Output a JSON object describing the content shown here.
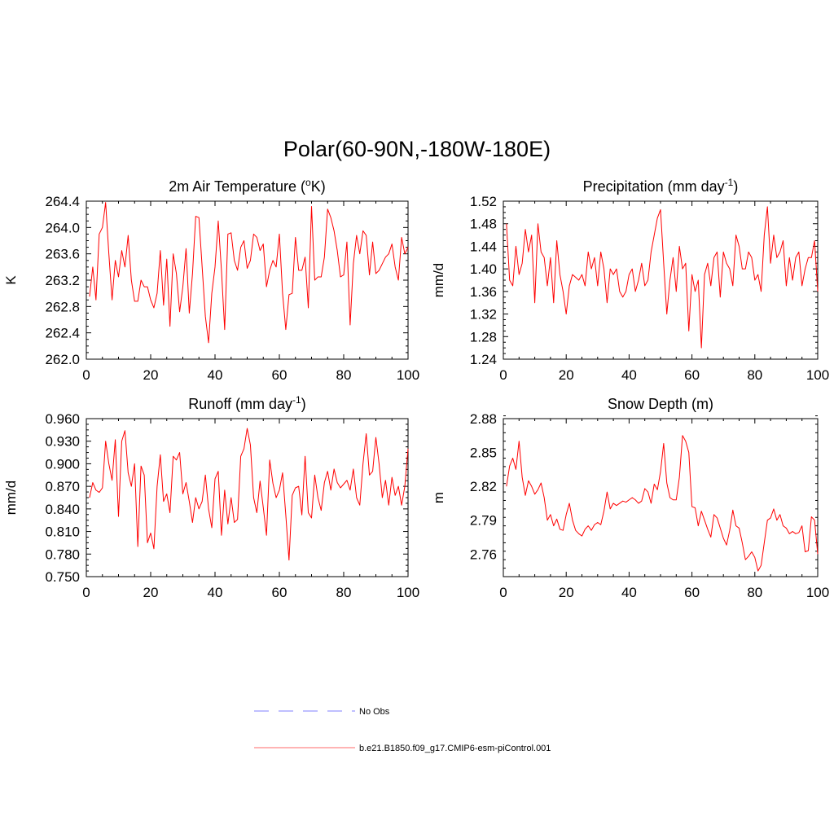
{
  "figure": {
    "title": "Polar(60-90N,-180W-180E)",
    "line_color": "#ff0000",
    "obs_color": "#9999ff"
  },
  "legend": {
    "entries": [
      {
        "label": "No Obs",
        "style": "dashed",
        "color": "#9999ff"
      },
      {
        "label": "b.e21.B1850.f09_g17.CMIP6-esm-piControl.001",
        "style": "solid",
        "color": "#ff0000"
      }
    ]
  },
  "chart_data": [
    {
      "type": "line",
      "title": "2m Air Temperature (",
      "title_sup": "o",
      "title_tail": "K)",
      "xlabel": "",
      "ylabel": "K",
      "xlim": [
        0,
        100
      ],
      "ylim": [
        262.0,
        264.4
      ],
      "xticks": [
        0,
        20,
        40,
        60,
        80,
        100
      ],
      "xtick_labels": [
        "0",
        "20",
        "40",
        "60",
        "80",
        "100"
      ],
      "yticks": [
        262.0,
        262.4,
        262.8,
        263.2,
        263.6,
        264.0,
        264.4
      ],
      "ytick_labels": [
        "262.0",
        "262.4",
        "262.8",
        "263.2",
        "263.6",
        "264.0",
        "264.4"
      ],
      "x_start": 1,
      "series": [
        {
          "name": "b.e21.B1850.f09_g17.CMIP6-esm-piControl.001",
          "values": [
            262.95,
            263.4,
            262.9,
            263.9,
            264.0,
            264.38,
            263.6,
            262.9,
            263.5,
            263.25,
            263.65,
            263.4,
            263.88,
            263.2,
            262.88,
            262.88,
            263.2,
            263.1,
            263.1,
            262.9,
            262.78,
            263.0,
            263.65,
            262.82,
            263.52,
            262.5,
            263.6,
            263.3,
            262.72,
            263.1,
            263.68,
            262.7,
            263.3,
            264.17,
            264.15,
            263.4,
            262.65,
            262.25,
            263.0,
            263.4,
            264.1,
            263.35,
            262.45,
            263.9,
            263.92,
            263.5,
            263.35,
            263.7,
            263.8,
            263.38,
            263.5,
            263.9,
            263.85,
            263.65,
            263.75,
            263.1,
            263.35,
            263.5,
            263.4,
            263.9,
            263.0,
            262.45,
            262.98,
            263.0,
            263.85,
            263.35,
            263.35,
            263.55,
            262.78,
            264.32,
            263.2,
            263.25,
            263.25,
            263.55,
            264.28,
            264.15,
            263.95,
            263.65,
            263.25,
            263.28,
            263.78,
            262.52,
            263.45,
            263.88,
            263.6,
            263.95,
            263.88,
            263.28,
            263.78,
            263.3,
            263.35,
            263.45,
            263.55,
            263.6,
            263.75,
            263.4,
            263.2,
            263.85,
            263.6,
            263.7
          ]
        }
      ]
    },
    {
      "type": "line",
      "title": "Precipitation (mm day",
      "title_sup": "-1",
      "title_tail": ")",
      "xlabel": "",
      "ylabel": "mm/d",
      "xlim": [
        0,
        100
      ],
      "ylim": [
        1.24,
        1.52
      ],
      "xticks": [
        0,
        20,
        40,
        60,
        80,
        100
      ],
      "xtick_labels": [
        "0",
        "20",
        "40",
        "60",
        "80",
        "100"
      ],
      "yticks": [
        1.24,
        1.28,
        1.32,
        1.36,
        1.4,
        1.44,
        1.48,
        1.52
      ],
      "ytick_labels": [
        "1.24",
        "1.28",
        "1.32",
        "1.36",
        "1.40",
        "1.44",
        "1.48",
        "1.52"
      ],
      "x_start": 1,
      "series": [
        {
          "name": "b.e21.B1850.f09_g17.CMIP6-esm-piControl.001",
          "values": [
            1.48,
            1.38,
            1.37,
            1.44,
            1.39,
            1.41,
            1.47,
            1.43,
            1.46,
            1.34,
            1.48,
            1.43,
            1.42,
            1.37,
            1.42,
            1.34,
            1.45,
            1.39,
            1.36,
            1.32,
            1.37,
            1.39,
            1.385,
            1.38,
            1.39,
            1.37,
            1.43,
            1.4,
            1.42,
            1.37,
            1.43,
            1.4,
            1.34,
            1.4,
            1.39,
            1.4,
            1.36,
            1.35,
            1.36,
            1.39,
            1.4,
            1.36,
            1.38,
            1.41,
            1.37,
            1.38,
            1.43,
            1.46,
            1.49,
            1.505,
            1.41,
            1.32,
            1.38,
            1.42,
            1.36,
            1.44,
            1.4,
            1.41,
            1.29,
            1.39,
            1.36,
            1.38,
            1.26,
            1.39,
            1.41,
            1.37,
            1.42,
            1.43,
            1.35,
            1.43,
            1.41,
            1.4,
            1.37,
            1.46,
            1.44,
            1.4,
            1.4,
            1.43,
            1.42,
            1.38,
            1.39,
            1.36,
            1.46,
            1.51,
            1.41,
            1.46,
            1.42,
            1.43,
            1.45,
            1.37,
            1.42,
            1.38,
            1.42,
            1.43,
            1.37,
            1.4,
            1.42,
            1.42,
            1.45,
            1.36
          ]
        }
      ]
    },
    {
      "type": "line",
      "title": "Runoff (mm day",
      "title_sup": "-1",
      "title_tail": ")",
      "xlabel": "",
      "ylabel": "mm/d",
      "xlim": [
        0,
        100
      ],
      "ylim": [
        0.75,
        0.96
      ],
      "xticks": [
        0,
        20,
        40,
        60,
        80,
        100
      ],
      "xtick_labels": [
        "0",
        "20",
        "40",
        "60",
        "80",
        "100"
      ],
      "yticks": [
        0.75,
        0.78,
        0.81,
        0.84,
        0.87,
        0.9,
        0.93,
        0.96
      ],
      "ytick_labels": [
        "0.750",
        "0.780",
        "0.810",
        "0.840",
        "0.870",
        "0.900",
        "0.930",
        "0.960"
      ],
      "x_start": 1,
      "series": [
        {
          "name": "b.e21.B1850.f09_g17.CMIP6-esm-piControl.001",
          "values": [
            0.855,
            0.875,
            0.865,
            0.862,
            0.868,
            0.93,
            0.9,
            0.878,
            0.932,
            0.83,
            0.93,
            0.944,
            0.888,
            0.87,
            0.9,
            0.79,
            0.897,
            0.885,
            0.795,
            0.808,
            0.787,
            0.87,
            0.912,
            0.85,
            0.86,
            0.835,
            0.91,
            0.905,
            0.915,
            0.86,
            0.875,
            0.85,
            0.822,
            0.855,
            0.84,
            0.85,
            0.885,
            0.84,
            0.815,
            0.88,
            0.89,
            0.805,
            0.865,
            0.82,
            0.855,
            0.822,
            0.826,
            0.91,
            0.92,
            0.947,
            0.925,
            0.855,
            0.835,
            0.877,
            0.842,
            0.805,
            0.905,
            0.874,
            0.855,
            0.865,
            0.888,
            0.832,
            0.772,
            0.858,
            0.868,
            0.87,
            0.832,
            0.91,
            0.835,
            0.828,
            0.885,
            0.855,
            0.838,
            0.875,
            0.89,
            0.865,
            0.893,
            0.875,
            0.868,
            0.873,
            0.878,
            0.865,
            0.893,
            0.855,
            0.845,
            0.9,
            0.94,
            0.885,
            0.89,
            0.935,
            0.9,
            0.855,
            0.878,
            0.845,
            0.882,
            0.858,
            0.87,
            0.845,
            0.87,
            0.92
          ]
        }
      ]
    },
    {
      "type": "line",
      "title": "Snow Depth (m)",
      "title_sup": "",
      "title_tail": "",
      "xlabel": "",
      "ylabel": "m",
      "xlim": [
        0,
        100
      ],
      "ylim": [
        2.74,
        2.88
      ],
      "xticks": [
        0,
        20,
        40,
        60,
        80,
        100
      ],
      "xtick_labels": [
        "0",
        "20",
        "40",
        "60",
        "80",
        "100"
      ],
      "yticks": [
        2.76,
        2.79,
        2.82,
        2.85,
        2.88
      ],
      "ytick_labels": [
        "2.76",
        "2.79",
        "2.82",
        "2.85",
        "2.88"
      ],
      "x_start": 1,
      "series": [
        {
          "name": "b.e21.B1850.f09_g17.CMIP6-esm-piControl.001",
          "values": [
            2.82,
            2.838,
            2.845,
            2.835,
            2.86,
            2.828,
            2.812,
            2.825,
            2.82,
            2.813,
            2.817,
            2.823,
            2.81,
            2.79,
            2.795,
            2.785,
            2.791,
            2.782,
            2.781,
            2.795,
            2.805,
            2.79,
            2.781,
            2.778,
            2.776,
            2.782,
            2.785,
            2.781,
            2.786,
            2.788,
            2.786,
            2.798,
            2.815,
            2.8,
            2.805,
            2.803,
            2.805,
            2.807,
            2.806,
            2.808,
            2.81,
            2.808,
            2.805,
            2.807,
            2.818,
            2.815,
            2.805,
            2.822,
            2.817,
            2.833,
            2.858,
            2.823,
            2.81,
            2.808,
            2.808,
            2.828,
            2.865,
            2.86,
            2.85,
            2.802,
            2.801,
            2.785,
            2.798,
            2.79,
            2.782,
            2.775,
            2.795,
            2.792,
            2.783,
            2.774,
            2.768,
            2.781,
            2.799,
            2.785,
            2.783,
            2.77,
            2.755,
            2.758,
            2.762,
            2.757,
            2.745,
            2.75,
            2.77,
            2.79,
            2.792,
            2.8,
            2.79,
            2.795,
            2.785,
            2.783,
            2.778,
            2.78,
            2.778,
            2.779,
            2.785,
            2.762,
            2.763,
            2.793,
            2.79,
            2.76
          ]
        }
      ]
    }
  ]
}
